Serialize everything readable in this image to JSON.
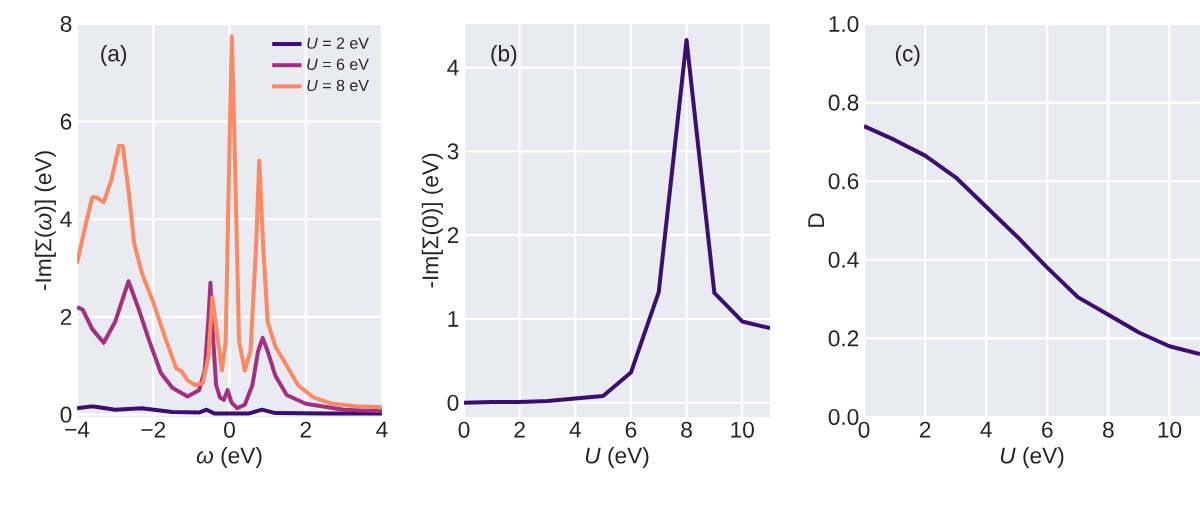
{
  "chart_data": [
    {
      "type": "line",
      "xlabel": "*ω* (eV)",
      "ylabel": "-Im[Σ(*ω*)] (eV)",
      "annotations": [
        "(a)"
      ],
      "xlim": [
        -4,
        4
      ],
      "ylim": [
        -0.05,
        8
      ],
      "xticks": [
        {
          "value": -4,
          "label": "−4"
        },
        {
          "value": -2,
          "label": "−2"
        },
        0,
        2,
        4
      ],
      "yticks": [
        0,
        2,
        4,
        6,
        8
      ],
      "grid": true,
      "legend": "top right",
      "series": [
        {
          "name": "*U* = 2 eV",
          "color": "#3b0f70",
          "x": [
            -4,
            -3.6,
            -3.0,
            -2.3,
            -1.5,
            -0.8,
            -0.6,
            -0.4,
            0.5,
            0.85,
            1.2,
            2.5,
            4.0
          ],
          "values": [
            0.13,
            0.17,
            0.1,
            0.13,
            0.05,
            0.04,
            0.1,
            0.02,
            0.02,
            0.1,
            0.03,
            0.02,
            0.02
          ]
        },
        {
          "name": "*U* = 6 eV",
          "color": "#a3307e",
          "x": [
            -4,
            -3.85,
            -3.6,
            -3.3,
            -3.0,
            -2.65,
            -2.4,
            -2.1,
            -1.8,
            -1.5,
            -1.1,
            -0.8,
            -0.65,
            -0.55,
            -0.5,
            -0.45,
            -0.35,
            -0.25,
            -0.15,
            -0.05,
            0.05,
            0.2,
            0.4,
            0.6,
            0.75,
            0.87,
            1.0,
            1.2,
            1.5,
            2.0,
            3.0,
            4.0
          ],
          "values": [
            2.2,
            2.15,
            1.75,
            1.47,
            1.9,
            2.73,
            2.2,
            1.5,
            0.85,
            0.55,
            0.37,
            0.5,
            0.9,
            2.0,
            2.7,
            1.8,
            0.6,
            0.35,
            0.3,
            0.5,
            0.25,
            0.13,
            0.2,
            0.6,
            1.3,
            1.57,
            1.3,
            0.8,
            0.4,
            0.22,
            0.1,
            0.07
          ]
        },
        {
          "name": "*U* = 8 eV",
          "color": "#fc8961",
          "x": [
            -4,
            -3.8,
            -3.6,
            -3.5,
            -3.3,
            -3.1,
            -2.9,
            -2.8,
            -2.65,
            -2.5,
            -2.3,
            -2.0,
            -1.7,
            -1.4,
            -1.25,
            -1.1,
            -0.9,
            -0.7,
            -0.55,
            -0.45,
            -0.35,
            -0.2,
            -0.1,
            0.0,
            0.06,
            0.12,
            0.25,
            0.4,
            0.55,
            0.7,
            0.78,
            0.88,
            1.0,
            1.2,
            1.5,
            1.8,
            2.2,
            2.7,
            3.3,
            4.0
          ],
          "values": [
            3.1,
            3.8,
            4.45,
            4.45,
            4.35,
            4.8,
            5.5,
            5.5,
            4.6,
            3.5,
            2.9,
            2.3,
            1.6,
            0.95,
            0.88,
            0.7,
            0.6,
            0.65,
            1.2,
            2.4,
            1.8,
            0.9,
            1.5,
            5.5,
            7.75,
            6.0,
            1.5,
            0.9,
            1.3,
            3.5,
            5.2,
            3.5,
            1.9,
            1.4,
            1.0,
            0.6,
            0.35,
            0.22,
            0.17,
            0.15
          ]
        }
      ]
    },
    {
      "type": "line",
      "xlabel": "*U* (eV)",
      "ylabel": "-Im[Σ(0)] (eV)",
      "annotations": [
        "(b)"
      ],
      "xlim": [
        0,
        11
      ],
      "ylim": [
        -0.17,
        4.52
      ],
      "xticks": [
        0,
        2,
        4,
        6,
        8,
        10
      ],
      "yticks": [
        0,
        1,
        2,
        3,
        4
      ],
      "grid": true,
      "series": [
        {
          "color": "#3b0f70",
          "x": [
            0,
            1,
            2,
            3,
            4,
            5,
            6,
            7,
            8,
            9,
            10,
            11
          ],
          "values": [
            0.0,
            0.01,
            0.01,
            0.02,
            0.05,
            0.08,
            0.36,
            1.32,
            4.33,
            1.31,
            0.97,
            0.89
          ]
        }
      ]
    },
    {
      "type": "line",
      "xlabel": "*U* (eV)",
      "ylabel": "D",
      "annotations": [
        "(c)"
      ],
      "xlim": [
        0,
        11
      ],
      "ylim": [
        0,
        1
      ],
      "xticks": [
        0,
        2,
        4,
        6,
        8,
        10
      ],
      "yticks": [
        {
          "value": 0,
          "label": "0.0"
        },
        0.2,
        0.4,
        0.6,
        0.8,
        {
          "value": 1,
          "label": "1.0"
        }
      ],
      "grid": true,
      "series": [
        {
          "color": "#3b0f70",
          "x": [
            0,
            1,
            2,
            3,
            4,
            5,
            6,
            7,
            8,
            9,
            10,
            11
          ],
          "values": [
            0.74,
            0.705,
            0.665,
            0.61,
            0.535,
            0.46,
            0.38,
            0.305,
            0.26,
            0.215,
            0.18,
            0.16
          ]
        }
      ]
    }
  ]
}
